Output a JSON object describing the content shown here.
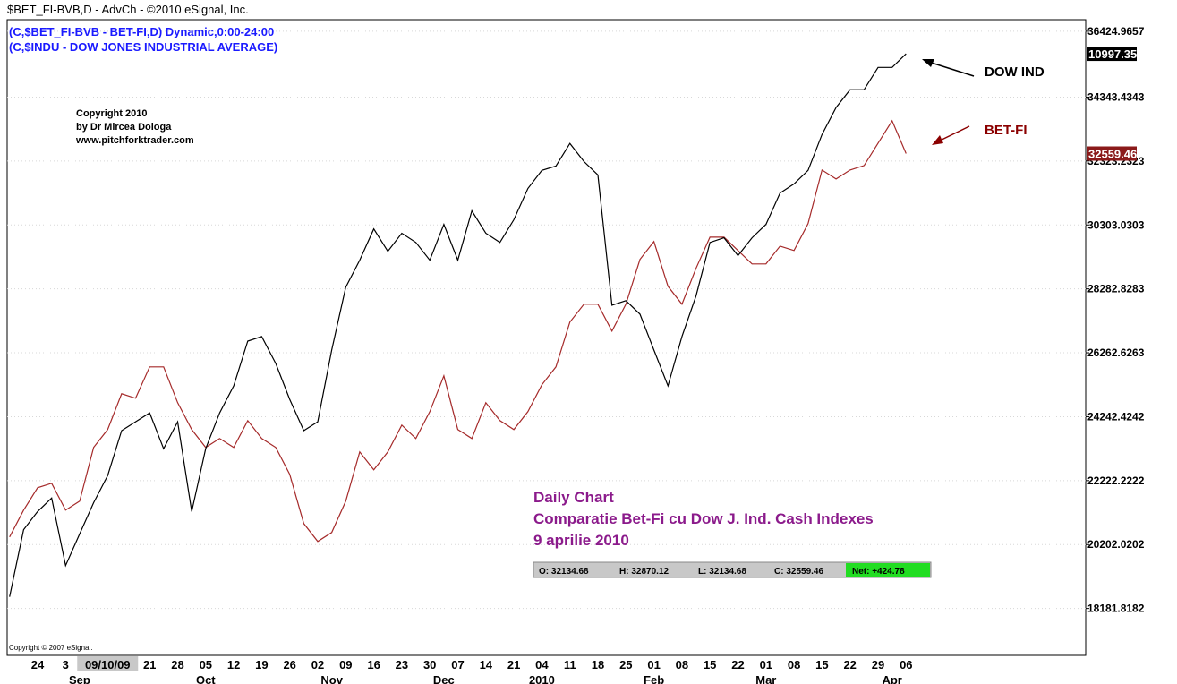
{
  "chart_data": {
    "type": "line",
    "title": "$BET_FI-BVB,D - AdvCh - ©2010 eSignal, Inc.",
    "subtitles": [
      "(C,$BET_FI-BVB - BET-FI,D) Dynamic,0:00-24:00",
      "(C,$INDU - DOW JONES INDUSTRIAL AVERAGE)"
    ],
    "copyright": [
      "Copyright 2010",
      "by Dr Mircea Dologa",
      "www.pitchforktrader.com"
    ],
    "source": "Copyright © 2007 eSignal.",
    "annotation": [
      "Daily Chart",
      "Comparatie Bet-Fi cu Dow J. Ind. Cash Indexes",
      "9 aprilie 2010"
    ],
    "status_bar": [
      "O: 32134.68",
      "H: 32870.12",
      "L: 32134.68",
      "C: 32559.46",
      "Net: +424.78"
    ],
    "categories": [
      null,
      null,
      "24",
      null,
      "3",
      null,
      null,
      "09/10/09",
      null,
      null,
      "21",
      null,
      "28",
      null,
      "05",
      null,
      "12",
      null,
      "19",
      null,
      "26",
      null,
      "02",
      null,
      "09",
      null,
      "16",
      null,
      "23",
      null,
      "30",
      null,
      "07",
      null,
      "14",
      null,
      "21",
      null,
      "04",
      null,
      "11",
      null,
      "18",
      null,
      "25",
      null,
      "01",
      null,
      "08",
      null,
      "15",
      null,
      "22",
      null,
      "01",
      null,
      "08",
      null,
      "15",
      null,
      "22",
      null,
      "29",
      null,
      "06"
    ],
    "months": [
      null,
      null,
      null,
      null,
      null,
      "Sep",
      null,
      null,
      null,
      null,
      null,
      null,
      null,
      null,
      "Oct",
      null,
      null,
      null,
      null,
      null,
      null,
      null,
      null,
      "Nov",
      null,
      null,
      null,
      null,
      null,
      null,
      null,
      "Dec",
      null,
      null,
      null,
      null,
      null,
      null,
      "2010",
      null,
      null,
      null,
      null,
      null,
      null,
      null,
      "Feb",
      null,
      null,
      null,
      null,
      null,
      null,
      null,
      "Mar",
      null,
      null,
      null,
      null,
      null,
      null,
      null,
      null,
      "Apr",
      null
    ],
    "series": [
      {
        "name": "BET-FI",
        "color": "#a52a2a",
        "values": [
          20441,
          21290,
          21997,
          22139,
          21290,
          21573,
          23270,
          23836,
          24968,
          24826,
          25816,
          25816,
          24685,
          23836,
          23270,
          23553,
          23270,
          24119,
          23553,
          23270,
          22421,
          20865,
          20300,
          20583,
          21573,
          23129,
          22563,
          23129,
          23977,
          23553,
          24402,
          25533,
          23836,
          23553,
          24685,
          24119,
          23836,
          24402,
          25250,
          25816,
          27231,
          27797,
          27797,
          26948,
          27797,
          29211,
          29777,
          28362,
          27797,
          28928,
          29918,
          29918,
          29494,
          29070,
          29070,
          29635,
          29494,
          30343,
          32040,
          31757,
          32040,
          32181,
          32889,
          33596,
          32559.46
        ]
      },
      {
        "name": "DOW IND",
        "color": "#000000",
        "axis": "y2",
        "values": [
          9226,
          9445,
          9504,
          9548,
          9328,
          9431,
          9533,
          9621,
          9768,
          9797,
          9826,
          9709,
          9797,
          9504,
          9709,
          9826,
          9914,
          10060,
          10075,
          9987,
          9870,
          9768,
          9797,
          10031,
          10236,
          10324,
          10426,
          10353,
          10412,
          10382,
          10324,
          10441,
          10324,
          10485,
          10412,
          10382,
          10456,
          10558,
          10617,
          10631,
          10705,
          10646,
          10602,
          10177,
          10192,
          10148,
          10031,
          9914,
          10075,
          10207,
          10382,
          10397,
          10339,
          10397,
          10441,
          10543,
          10573,
          10617,
          10734,
          10822,
          10880,
          10880,
          10953,
          10953,
          10997.35
        ]
      }
    ],
    "ylim": [
      16700,
      36620
    ],
    "yticks": [
      18181.8182,
      20202.0202,
      22222.2222,
      24242.4242,
      26262.6263,
      28282.8283,
      30303.0303,
      32323.2323,
      34343.4343,
      36424.9657
    ],
    "y2lim": [
      9035,
      11091
    ],
    "grid": true
  }
}
